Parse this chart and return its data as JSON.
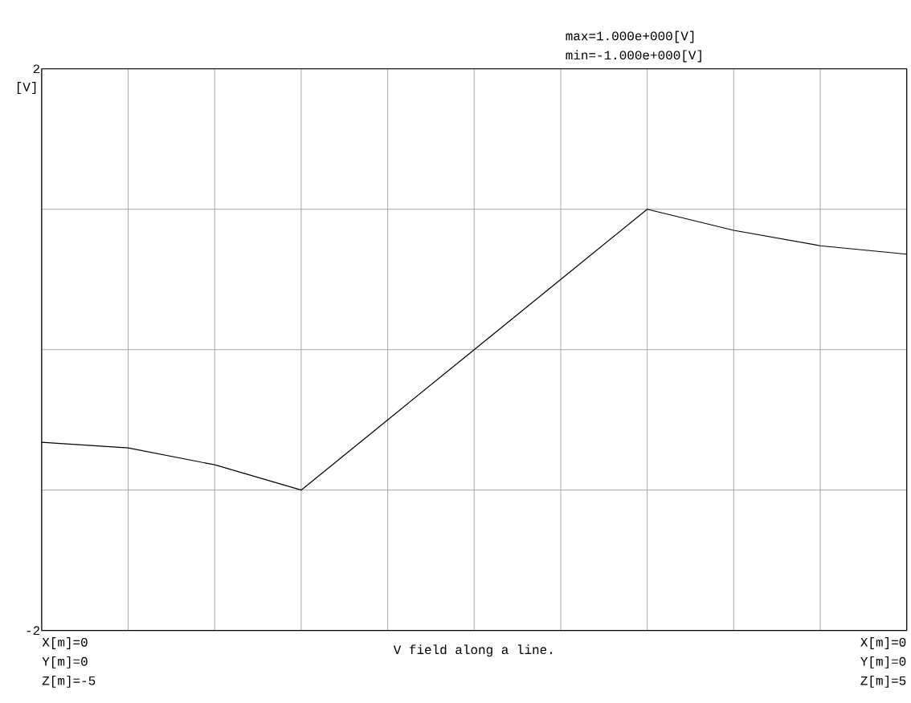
{
  "chart_data": {
    "type": "line",
    "xlabel": "V field along a line.",
    "ylabel": "[V]",
    "categories": [
      null,
      null,
      null,
      null,
      null,
      null,
      null,
      null,
      null,
      null,
      null
    ],
    "values": [
      -0.66,
      -0.7,
      -0.82,
      -1,
      -0.5,
      0,
      0.5,
      1,
      0.85,
      0.74,
      0.68
    ],
    "color": "#000000",
    "ylim": [
      -2,
      2
    ],
    "yticks": [
      -2,
      {
        "value": -1,
        "label": null
      },
      {
        "value": 0,
        "label": null
      },
      {
        "value": 1,
        "label": null
      },
      2
    ],
    "grid": true,
    "tick_labels": "y",
    "annotations": [
      "max=1.000e+000[V]",
      "min=-1.000e+000[V]",
      "X[m]=0",
      "Y[m]=0",
      "Z[m]=-5",
      "X[m]=0",
      "Y[m]=0",
      "Z[m]=5"
    ]
  }
}
